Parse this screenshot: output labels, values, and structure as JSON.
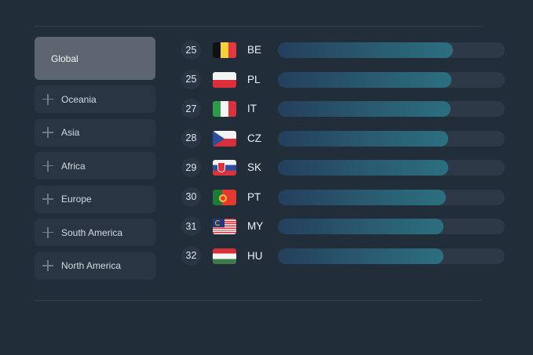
{
  "sidebar": {
    "items": [
      {
        "label": "Global",
        "active": true
      },
      {
        "label": "Oceania",
        "icon": "plus-icon"
      },
      {
        "label": "Asia",
        "icon": "plus-icon"
      },
      {
        "label": "Africa",
        "icon": "plus-icon"
      },
      {
        "label": "Europe",
        "icon": "plus-icon"
      },
      {
        "label": "South America",
        "icon": "plus-icon"
      },
      {
        "label": "North America",
        "icon": "plus-icon"
      }
    ]
  },
  "ranking": {
    "rows": [
      {
        "rank": "25",
        "code": "BE",
        "flag": "belgium-flag",
        "fill_pct": 77
      },
      {
        "rank": "25",
        "code": "PL",
        "flag": "poland-flag",
        "fill_pct": 76.6
      },
      {
        "rank": "27",
        "code": "IT",
        "flag": "italy-flag",
        "fill_pct": 76
      },
      {
        "rank": "28",
        "code": "CZ",
        "flag": "czechia-flag",
        "fill_pct": 75
      },
      {
        "rank": "29",
        "code": "SK",
        "flag": "slovakia-flag",
        "fill_pct": 75
      },
      {
        "rank": "30",
        "code": "PT",
        "flag": "portugal-flag",
        "fill_pct": 74
      },
      {
        "rank": "31",
        "code": "MY",
        "flag": "malaysia-flag",
        "fill_pct": 73
      },
      {
        "rank": "32",
        "code": "HU",
        "flag": "hungary-flag",
        "fill_pct": 73
      }
    ]
  },
  "colors": {
    "background": "#222d3a",
    "panel": "#2a3543",
    "active_panel": "#5d6670",
    "bar_track": "#2e3947",
    "bar_fill_start": "#243f5d",
    "bar_fill_end": "#2b6f80"
  }
}
